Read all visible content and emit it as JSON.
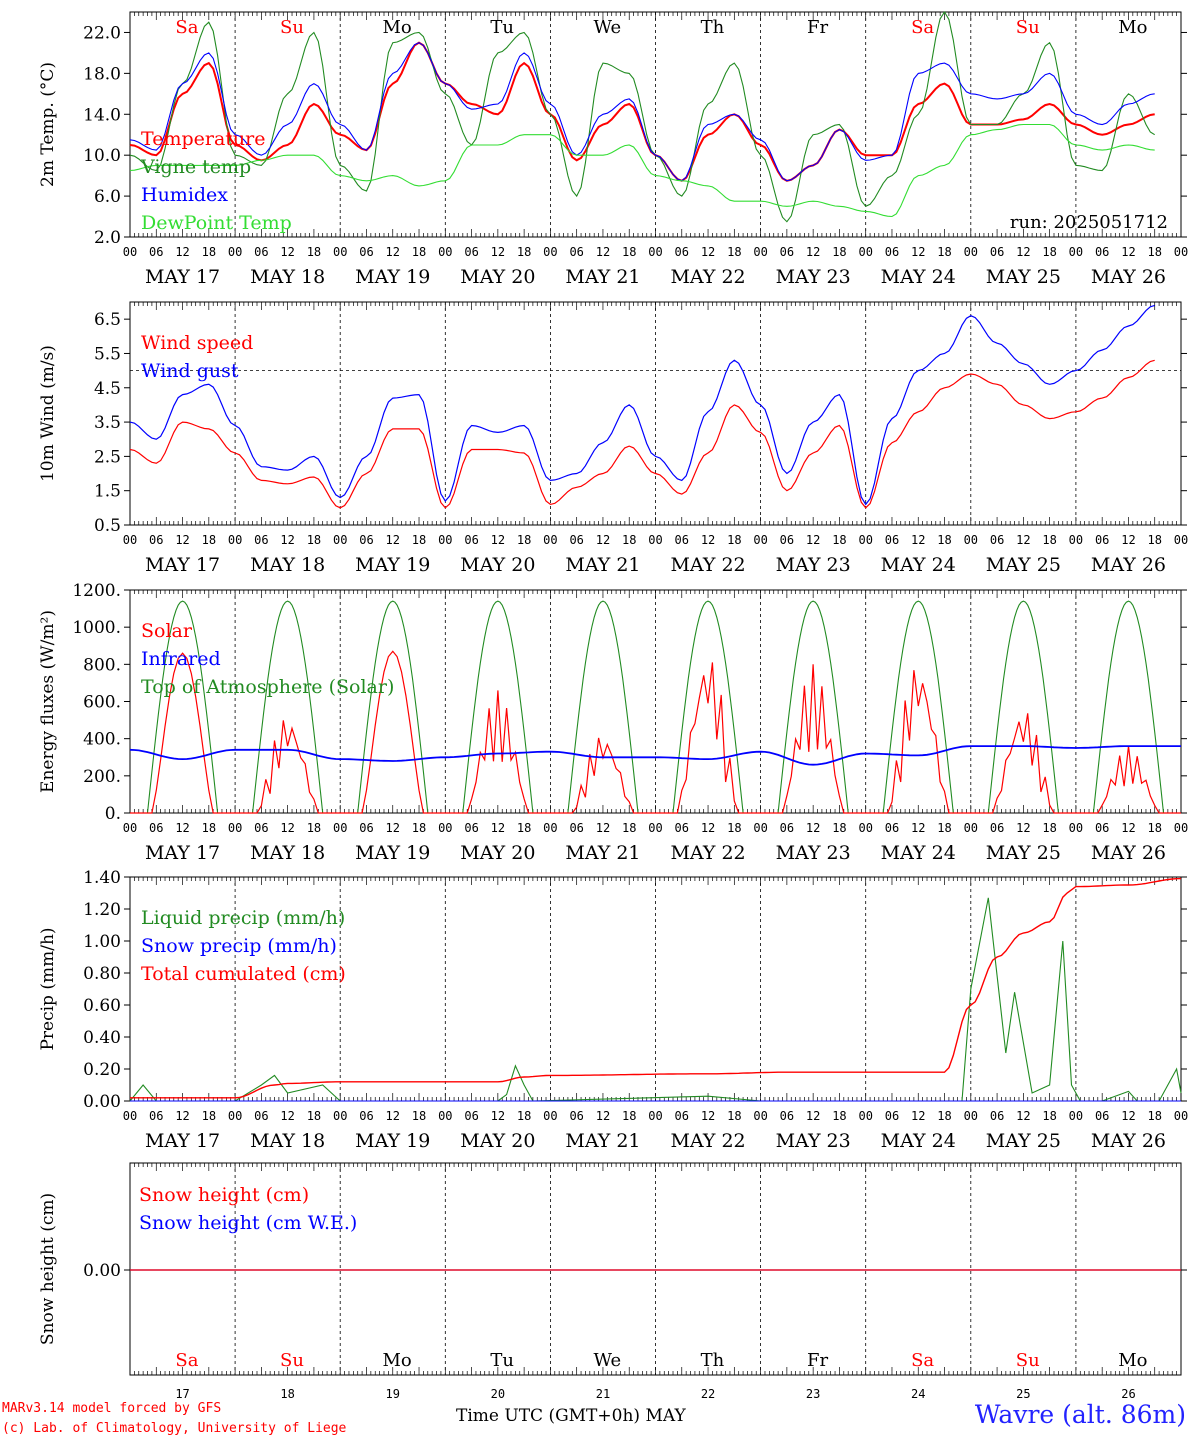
{
  "page": {
    "credit_line1": "MARv3.14 model forced by GFS",
    "credit_line2": "(c) Lab. of Climatology, University of Liege",
    "xaxis_title": "Time UTC (GMT+0h)",
    "month": "MAY",
    "station": "Wavre (alt. 86m)"
  },
  "colors": {
    "red": "#ff0000",
    "green": "#228B22",
    "blue": "#0000ff",
    "lightgreen": "#33dd33",
    "axis": "#000000"
  },
  "days": {
    "weekday": [
      "Sa",
      "Su",
      "Mo",
      "Tu",
      "We",
      "Th",
      "Fr",
      "Sa",
      "Su",
      "Mo"
    ],
    "weekday_color": [
      "red",
      "red",
      "black",
      "black",
      "black",
      "black",
      "black",
      "red",
      "red",
      "black"
    ],
    "date_label": [
      "MAY 17",
      "MAY 18",
      "MAY 19",
      "MAY 20",
      "MAY 21",
      "MAY 22",
      "MAY 23",
      "MAY 24",
      "MAY 25",
      "MAY 26"
    ],
    "day_number": [
      "17",
      "18",
      "19",
      "20",
      "21",
      "22",
      "23",
      "24",
      "25",
      "26"
    ],
    "hour_ticks": [
      "00",
      "06",
      "12",
      "18"
    ],
    "hour_tick_end": "00"
  },
  "chart_data": [
    {
      "type": "line",
      "ylabel": "2m Temp. (°C)",
      "ylim": [
        2.0,
        24.0
      ],
      "yticks": [
        "2.0",
        "6.0",
        "10.0",
        "14.0",
        "18.0",
        "22.0"
      ],
      "annotation": "run: 2025051712",
      "x_hours": [
        0,
        6,
        12,
        18,
        24,
        30,
        36,
        42,
        48,
        54,
        60,
        66,
        72,
        78,
        84,
        90,
        96,
        102,
        108,
        114,
        120,
        126,
        132,
        138,
        144,
        150,
        156,
        162,
        168,
        174,
        180,
        186,
        192,
        198,
        204,
        210,
        216,
        222,
        228,
        234
      ],
      "series": [
        {
          "name": "Temperature",
          "color": "red",
          "values": [
            11,
            10,
            16,
            19,
            11,
            9.5,
            11,
            15,
            12,
            10.5,
            17,
            21,
            17,
            15,
            14,
            19,
            14,
            9.5,
            13,
            15,
            10,
            7.5,
            12,
            14,
            11,
            7.5,
            9,
            12.5,
            10,
            10,
            15,
            17,
            13,
            13,
            13.5,
            15,
            13,
            12,
            13,
            14
          ]
        },
        {
          "name": "Vigne temp",
          "color": "green",
          "values": [
            10,
            8.5,
            17,
            23,
            10,
            9,
            16,
            22,
            9,
            6.5,
            21,
            22,
            16,
            11,
            20,
            22,
            14,
            6,
            19,
            18,
            10,
            6,
            15,
            19,
            10,
            3.5,
            12,
            13,
            5,
            8,
            14,
            24,
            13,
            13,
            16,
            21,
            9,
            8.5,
            16,
            12
          ]
        },
        {
          "name": "Humidex",
          "color": "blue",
          "values": [
            11.5,
            10.5,
            17,
            20,
            12,
            10,
            13,
            17,
            13,
            10.5,
            18,
            21,
            17,
            14.5,
            15,
            20,
            15,
            10,
            14,
            15.5,
            10,
            7.5,
            13,
            14,
            11.5,
            7.5,
            9,
            12.5,
            9.5,
            10,
            18,
            19,
            16,
            15.5,
            16,
            18,
            14,
            13,
            15,
            16
          ]
        },
        {
          "name": "DewPoint Temp",
          "color": "lightgreen",
          "values": [
            8.5,
            9,
            9,
            9,
            9,
            9.5,
            10,
            10,
            8,
            7.5,
            8,
            7,
            7.5,
            11,
            11,
            12,
            12,
            10,
            10,
            11,
            8,
            7.5,
            7,
            5.5,
            5.5,
            5,
            5.5,
            5,
            4.5,
            4,
            8,
            9,
            12,
            12.5,
            13,
            13,
            11,
            10.5,
            11,
            10.5
          ]
        }
      ]
    },
    {
      "type": "line",
      "ylabel": "10m Wind (m/s)",
      "ylim": [
        0.5,
        7.0
      ],
      "yticks": [
        "0.5",
        "1.5",
        "2.5",
        "3.5",
        "4.5",
        "5.5",
        "6.5"
      ],
      "reference_line": 5.0,
      "x_hours": [
        0,
        6,
        12,
        18,
        24,
        30,
        36,
        42,
        48,
        54,
        60,
        66,
        72,
        78,
        84,
        90,
        96,
        102,
        108,
        114,
        120,
        126,
        132,
        138,
        144,
        150,
        156,
        162,
        168,
        174,
        180,
        186,
        192,
        198,
        204,
        210,
        216,
        222,
        228,
        234
      ],
      "series": [
        {
          "name": "Wind speed",
          "color": "red",
          "values": [
            2.7,
            2.3,
            3.5,
            3.3,
            2.6,
            1.8,
            1.7,
            1.9,
            1.0,
            2.0,
            3.3,
            3.3,
            1.0,
            2.7,
            2.7,
            2.6,
            1.1,
            1.6,
            2.0,
            2.8,
            2.0,
            1.4,
            2.6,
            4.0,
            3.2,
            1.5,
            2.6,
            3.4,
            1.0,
            2.9,
            3.8,
            4.5,
            4.9,
            4.6,
            4.0,
            3.6,
            3.8,
            4.2,
            4.8,
            5.3
          ]
        },
        {
          "name": "Wind gust",
          "color": "blue",
          "values": [
            3.5,
            3.0,
            4.3,
            4.6,
            3.4,
            2.2,
            2.1,
            2.5,
            1.3,
            2.5,
            4.2,
            4.3,
            1.2,
            3.4,
            3.2,
            3.4,
            1.8,
            2.0,
            2.9,
            4.0,
            2.5,
            1.8,
            3.8,
            5.3,
            4.0,
            2.0,
            3.5,
            4.3,
            1.1,
            3.6,
            5.0,
            5.5,
            6.6,
            5.8,
            5.2,
            4.6,
            5.0,
            5.6,
            6.3,
            6.9
          ]
        }
      ]
    },
    {
      "type": "line",
      "ylabel": "Energy fluxes (W/m²)",
      "ylim": [
        0,
        1200
      ],
      "yticks": [
        "0.",
        "200.",
        "400.",
        "600.",
        "800.",
        "1000.",
        "1200."
      ],
      "series": [
        {
          "name": "Solar",
          "color": "red",
          "day_peaks": [
            860,
            540,
            870,
            660,
            440,
            880,
            800,
            840,
            580,
            360
          ],
          "day_shape": [
            "smooth",
            "spiky",
            "smooth",
            "spiky",
            "spiky",
            "spiky",
            "spiky",
            "spiky",
            "spiky",
            "spiky"
          ]
        },
        {
          "name": "Infrared",
          "color": "blue",
          "x_hours": [
            0,
            12,
            24,
            36,
            48,
            60,
            72,
            84,
            96,
            108,
            120,
            132,
            144,
            156,
            168,
            180,
            192,
            204,
            216,
            228,
            240
          ],
          "values": [
            340,
            290,
            340,
            340,
            290,
            280,
            300,
            320,
            330,
            300,
            300,
            290,
            330,
            260,
            320,
            310,
            360,
            360,
            350,
            360,
            360
          ]
        },
        {
          "name": "Top of Atmosphere (Solar)",
          "color": "green",
          "daily_peak": 1140,
          "sunrise_h": 4,
          "sunset_h": 20
        }
      ]
    },
    {
      "type": "line",
      "ylabel": "Precip (mm/h)",
      "ylim": [
        0,
        1.4
      ],
      "yticks": [
        "0.00",
        "0.20",
        "0.40",
        "0.60",
        "0.80",
        "1.00",
        "1.20",
        "1.40"
      ],
      "series": [
        {
          "name": "Liquid precip (mm/h)",
          "color": "green",
          "x_hours": [
            0,
            3,
            6,
            24,
            30,
            33,
            36,
            44,
            48,
            84,
            86,
            88,
            90,
            92,
            132,
            144,
            190,
            192,
            196,
            200,
            202,
            206,
            210,
            213,
            215,
            217,
            222,
            228,
            230,
            235,
            239,
            240
          ],
          "values": [
            0,
            0.1,
            0,
            0,
            0.1,
            0.16,
            0.05,
            0.1,
            0,
            0,
            0.04,
            0.22,
            0.1,
            0,
            0.03,
            0,
            0,
            0.7,
            1.27,
            0.3,
            0.68,
            0.05,
            0.1,
            1.0,
            0.1,
            0,
            0,
            0.06,
            0,
            0,
            0.2,
            0.05
          ]
        },
        {
          "name": "Snow precip (mm/h)",
          "color": "blue",
          "x_hours": [
            0,
            240
          ],
          "values": [
            0,
            0
          ]
        },
        {
          "name": "Total cumulated (cm)",
          "color": "red",
          "x_hours": [
            0,
            24,
            33,
            36,
            48,
            84,
            90,
            96,
            132,
            150,
            168,
            186,
            192,
            198,
            204,
            210,
            214,
            216,
            228,
            240
          ],
          "values": [
            0.02,
            0.02,
            0.1,
            0.11,
            0.12,
            0.12,
            0.15,
            0.16,
            0.17,
            0.18,
            0.18,
            0.18,
            0.6,
            0.9,
            1.05,
            1.12,
            1.3,
            1.34,
            1.35,
            1.39
          ]
        }
      ]
    },
    {
      "type": "line",
      "ylabel": "Snow height (cm)",
      "yticks": [
        "0.00"
      ],
      "series": [
        {
          "name": "Snow height (cm)",
          "color": "red",
          "x_hours": [
            0,
            240
          ],
          "values": [
            0,
            0
          ]
        },
        {
          "name": "Snow height (cm W.E.)",
          "color": "blue",
          "x_hours": [
            0,
            240
          ],
          "values": [
            0,
            0
          ]
        }
      ]
    }
  ]
}
